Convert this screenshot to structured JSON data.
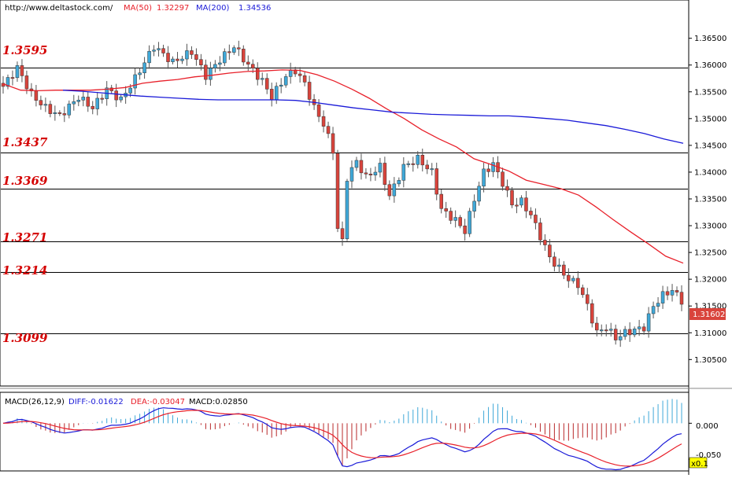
{
  "header": {
    "url": "http://www.deltastock.com/",
    "ma50_label": "MA(50)",
    "ma50_value": "1.32297",
    "ma200_label": "MA(200)",
    "ma200_value": "1.34536"
  },
  "macd_header": {
    "name": "MACD(26,12,9)",
    "diff": "DIFF:-0.01622",
    "dea": "DEA:-0.03047",
    "macd": "MACD:0.02850"
  },
  "current_price": "1.31602",
  "scale_badge": "x0.1",
  "colors": {
    "up": "#3fa8d8",
    "down": "#d9443c",
    "ma50": "#e8202a",
    "ma200": "#1a1ad8",
    "level_text": "#d40000",
    "hist_pos": "#3fa8d8",
    "hist_neg": "#b8282a",
    "badge": "#ffff00"
  },
  "chart_data": [
    {
      "type": "candlestick",
      "y_ticks": [
        "1.36500",
        "1.36000",
        "1.35500",
        "1.35000",
        "1.34500",
        "1.34000",
        "1.33500",
        "1.33000",
        "1.32500",
        "1.32000",
        "1.31500",
        "1.31000",
        "1.30500"
      ],
      "ylim": [
        1.3002,
        1.372
      ],
      "levels": [
        "1.3595",
        "1.3437",
        "1.3369",
        "1.3271",
        "1.3214",
        "1.3099"
      ],
      "level_values": [
        1.3595,
        1.3437,
        1.3369,
        1.3271,
        1.3214,
        1.3099
      ],
      "series": [
        {
          "name": "MA(50)",
          "values": [
            1.3565,
            1.3553,
            1.3552,
            1.3553,
            1.3553,
            1.3553,
            1.3555,
            1.3558,
            1.3566,
            1.357,
            1.3573,
            1.3578,
            1.3581,
            1.3585,
            1.3588,
            1.3589,
            1.3591,
            1.359,
            1.3582,
            1.357,
            1.3555,
            1.3538,
            1.3518,
            1.35,
            1.3479,
            1.3462,
            1.3447,
            1.3425,
            1.3414,
            1.3402,
            1.3385,
            1.3377,
            1.3369,
            1.3357,
            1.3335,
            1.3311,
            1.3288,
            1.3266,
            1.3243,
            1.323
          ]
        },
        {
          "name": "MA(200)",
          "values": [
            1.3553,
            1.3551,
            1.3548,
            1.3545,
            1.3542,
            1.354,
            1.3538,
            1.3536,
            1.3535,
            1.3535,
            1.3535,
            1.3535,
            1.3534,
            1.353,
            1.3525,
            1.352,
            1.3516,
            1.3512,
            1.351,
            1.3508,
            1.3507,
            1.3506,
            1.3505,
            1.3505,
            1.3503,
            1.35,
            1.3497,
            1.3492,
            1.3487,
            1.348,
            1.3472,
            1.3462,
            1.3454
          ]
        }
      ]
    },
    {
      "type": "bar",
      "title": "MACD(26,12,9)",
      "y_ticks": [
        "0.000",
        "-0.050"
      ],
      "ylim": [
        -0.065,
        0.02
      ]
    }
  ]
}
